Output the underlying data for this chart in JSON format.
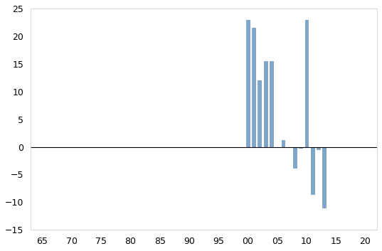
{
  "years": [
    2000,
    2001,
    2002,
    2003,
    2004,
    2006,
    2008,
    2009,
    2010,
    2011,
    2012,
    2013
  ],
  "values": [
    23.0,
    21.5,
    12.0,
    15.5,
    15.5,
    1.2,
    -3.8,
    -0.2,
    23.0,
    -8.5,
    -0.5,
    -11.0
  ],
  "bar_color": "#7ea6c8",
  "bar_edge_color": "#6b96b8",
  "ylim": [
    -15,
    25
  ],
  "yticks": [
    -15,
    -10,
    -5,
    0,
    5,
    10,
    15,
    20,
    25
  ],
  "tick_labels": [
    "65",
    "70",
    "75",
    "80",
    "85",
    "90",
    "95",
    "00",
    "05",
    "10",
    "15",
    "20"
  ],
  "bar_width": 0.6,
  "figsize": [
    5.37,
    3.53
  ],
  "dpi": 100,
  "xlim_left": 63,
  "xlim_right": 122
}
